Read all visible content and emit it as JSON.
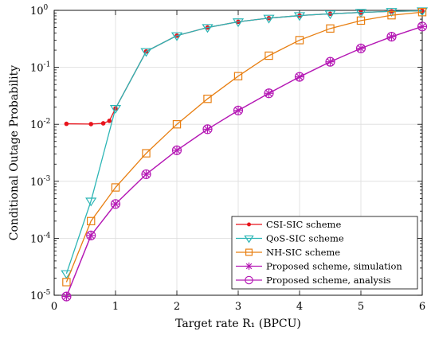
{
  "chart_data": {
    "type": "line",
    "xlabel": "Target rate R₁ (BPCU)",
    "ylabel": "Conditional Outage Probability",
    "xlim": [
      0,
      6
    ],
    "ylim": [
      1e-05,
      1
    ],
    "yscale": "log",
    "grid": true,
    "legend_position": "bottom-right",
    "x_ticks": [
      "0",
      "1",
      "2",
      "3",
      "4",
      "5",
      "6"
    ],
    "y_ticks": [
      {
        "base": "10",
        "exp": "-5"
      },
      {
        "base": "10",
        "exp": "-4"
      },
      {
        "base": "10",
        "exp": "-3"
      },
      {
        "base": "10",
        "exp": "-2"
      },
      {
        "base": "10",
        "exp": "-1"
      },
      {
        "base": "10",
        "exp": "0"
      }
    ],
    "series": [
      {
        "name": "CSI-SIC scheme",
        "color": "#e8141c",
        "marker": "dot",
        "x": [
          0.2,
          0.6,
          0.8,
          0.9,
          1.0,
          1.5,
          2.0,
          2.5,
          3.0,
          3.5,
          4.0,
          4.5,
          5.0,
          5.5,
          6.0
        ],
        "y": [
          0.0102,
          0.0101,
          0.0104,
          0.0115,
          0.019,
          0.19,
          0.36,
          0.5,
          0.63,
          0.73,
          0.81,
          0.87,
          0.92,
          0.96,
          0.98
        ]
      },
      {
        "name": "QoS-SIC scheme",
        "color": "#2bb5b5",
        "marker": "triangle-down",
        "x": [
          0.2,
          0.6,
          1.0,
          1.5,
          2.0,
          2.5,
          3.0,
          3.5,
          4.0,
          4.5,
          5.0,
          5.5,
          6.0
        ],
        "y": [
          2.4e-05,
          0.00045,
          0.019,
          0.19,
          0.36,
          0.5,
          0.63,
          0.73,
          0.81,
          0.87,
          0.92,
          0.96,
          0.98
        ]
      },
      {
        "name": "NH-SIC scheme",
        "color": "#e87f12",
        "marker": "square",
        "x": [
          0.2,
          0.6,
          1.0,
          1.5,
          2.0,
          2.5,
          3.0,
          3.5,
          4.0,
          4.5,
          5.0,
          5.5,
          6.0
        ],
        "y": [
          1.7e-05,
          0.0002,
          0.00078,
          0.0031,
          0.01,
          0.028,
          0.07,
          0.16,
          0.3,
          0.48,
          0.66,
          0.82,
          0.93
        ]
      },
      {
        "name": "Proposed scheme, simulation",
        "color": "#b51ab5",
        "marker": "asterisk",
        "x": [
          0.2,
          0.6,
          1.0,
          1.5,
          2.0,
          2.5,
          3.0,
          3.5,
          4.0,
          4.5,
          5.0,
          5.5,
          6.0
        ],
        "y": [
          9.5e-06,
          0.000112,
          0.0004,
          0.00133,
          0.0035,
          0.0082,
          0.0175,
          0.035,
          0.068,
          0.125,
          0.215,
          0.345,
          0.52
        ]
      },
      {
        "name": "Proposed scheme, analysis",
        "color": "#b51ab5",
        "marker": "circle",
        "x": [
          0.2,
          0.6,
          1.0,
          1.5,
          2.0,
          2.5,
          3.0,
          3.5,
          4.0,
          4.5,
          5.0,
          5.5,
          6.0
        ],
        "y": [
          9.5e-06,
          0.000112,
          0.0004,
          0.00133,
          0.0035,
          0.0082,
          0.0175,
          0.035,
          0.068,
          0.125,
          0.215,
          0.345,
          0.52
        ]
      }
    ]
  }
}
